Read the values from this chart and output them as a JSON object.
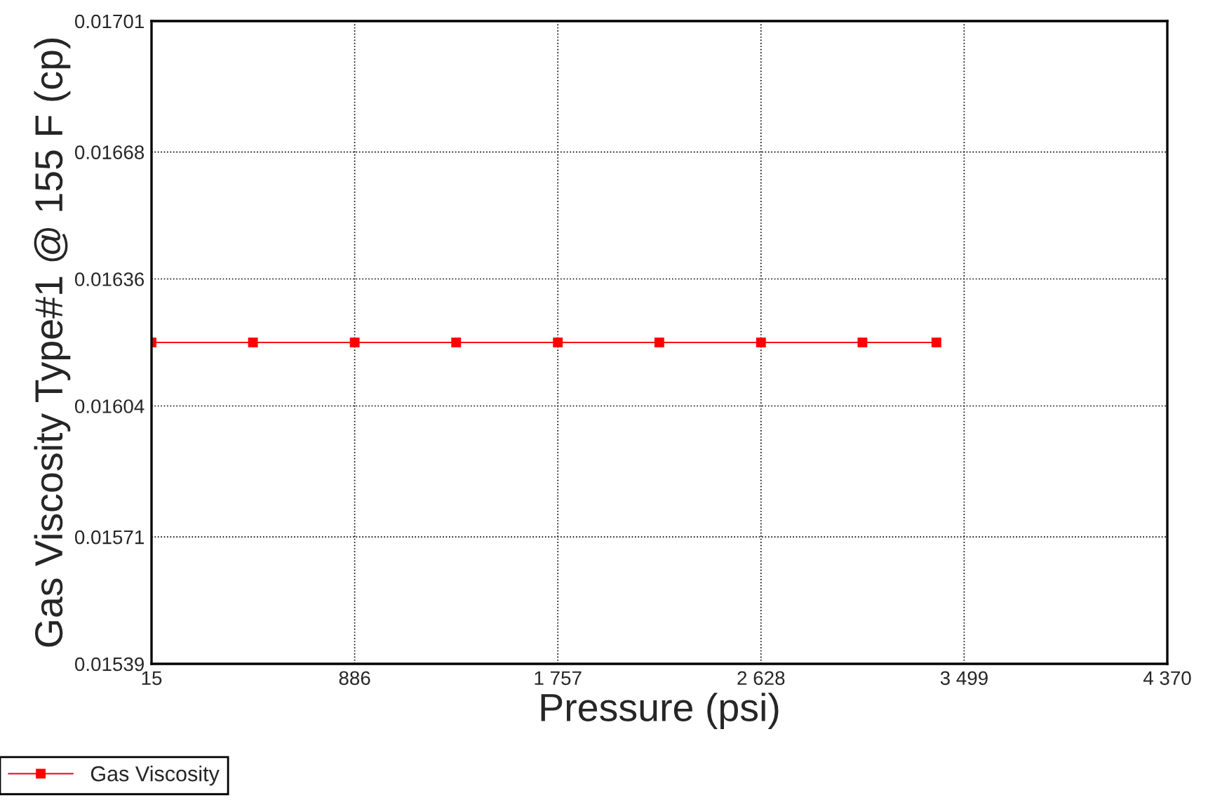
{
  "chart_data": {
    "type": "line",
    "xlabel": "Pressure (psi)",
    "ylabel": "Gas Viscosity Type#1 @ 155 F (cp)",
    "x": [
      15,
      450,
      886,
      1321,
      1757,
      2192,
      2628,
      3063,
      3380
    ],
    "series": [
      {
        "name": "Gas Viscosity",
        "color": "#ff0000",
        "values": [
          0.0162,
          0.0162,
          0.0162,
          0.0162,
          0.0162,
          0.0162,
          0.0162,
          0.0162,
          0.0162
        ]
      }
    ],
    "xlim": [
      15,
      4370
    ],
    "xticks": [
      15,
      886,
      {
        "value": 1757,
        "label": "1 757"
      },
      {
        "value": 2628,
        "label": "2 628"
      },
      {
        "value": 3499,
        "label": "3 499"
      },
      {
        "value": 4370,
        "label": "4 370"
      }
    ],
    "ylim": [
      0.01539,
      0.01701
    ],
    "yticks": [
      0.01539,
      0.01571,
      0.01604,
      0.01636,
      0.01668,
      0.01701
    ],
    "grid": true,
    "legend": "bottom left",
    "marker": "square",
    "line_style": "solid"
  }
}
